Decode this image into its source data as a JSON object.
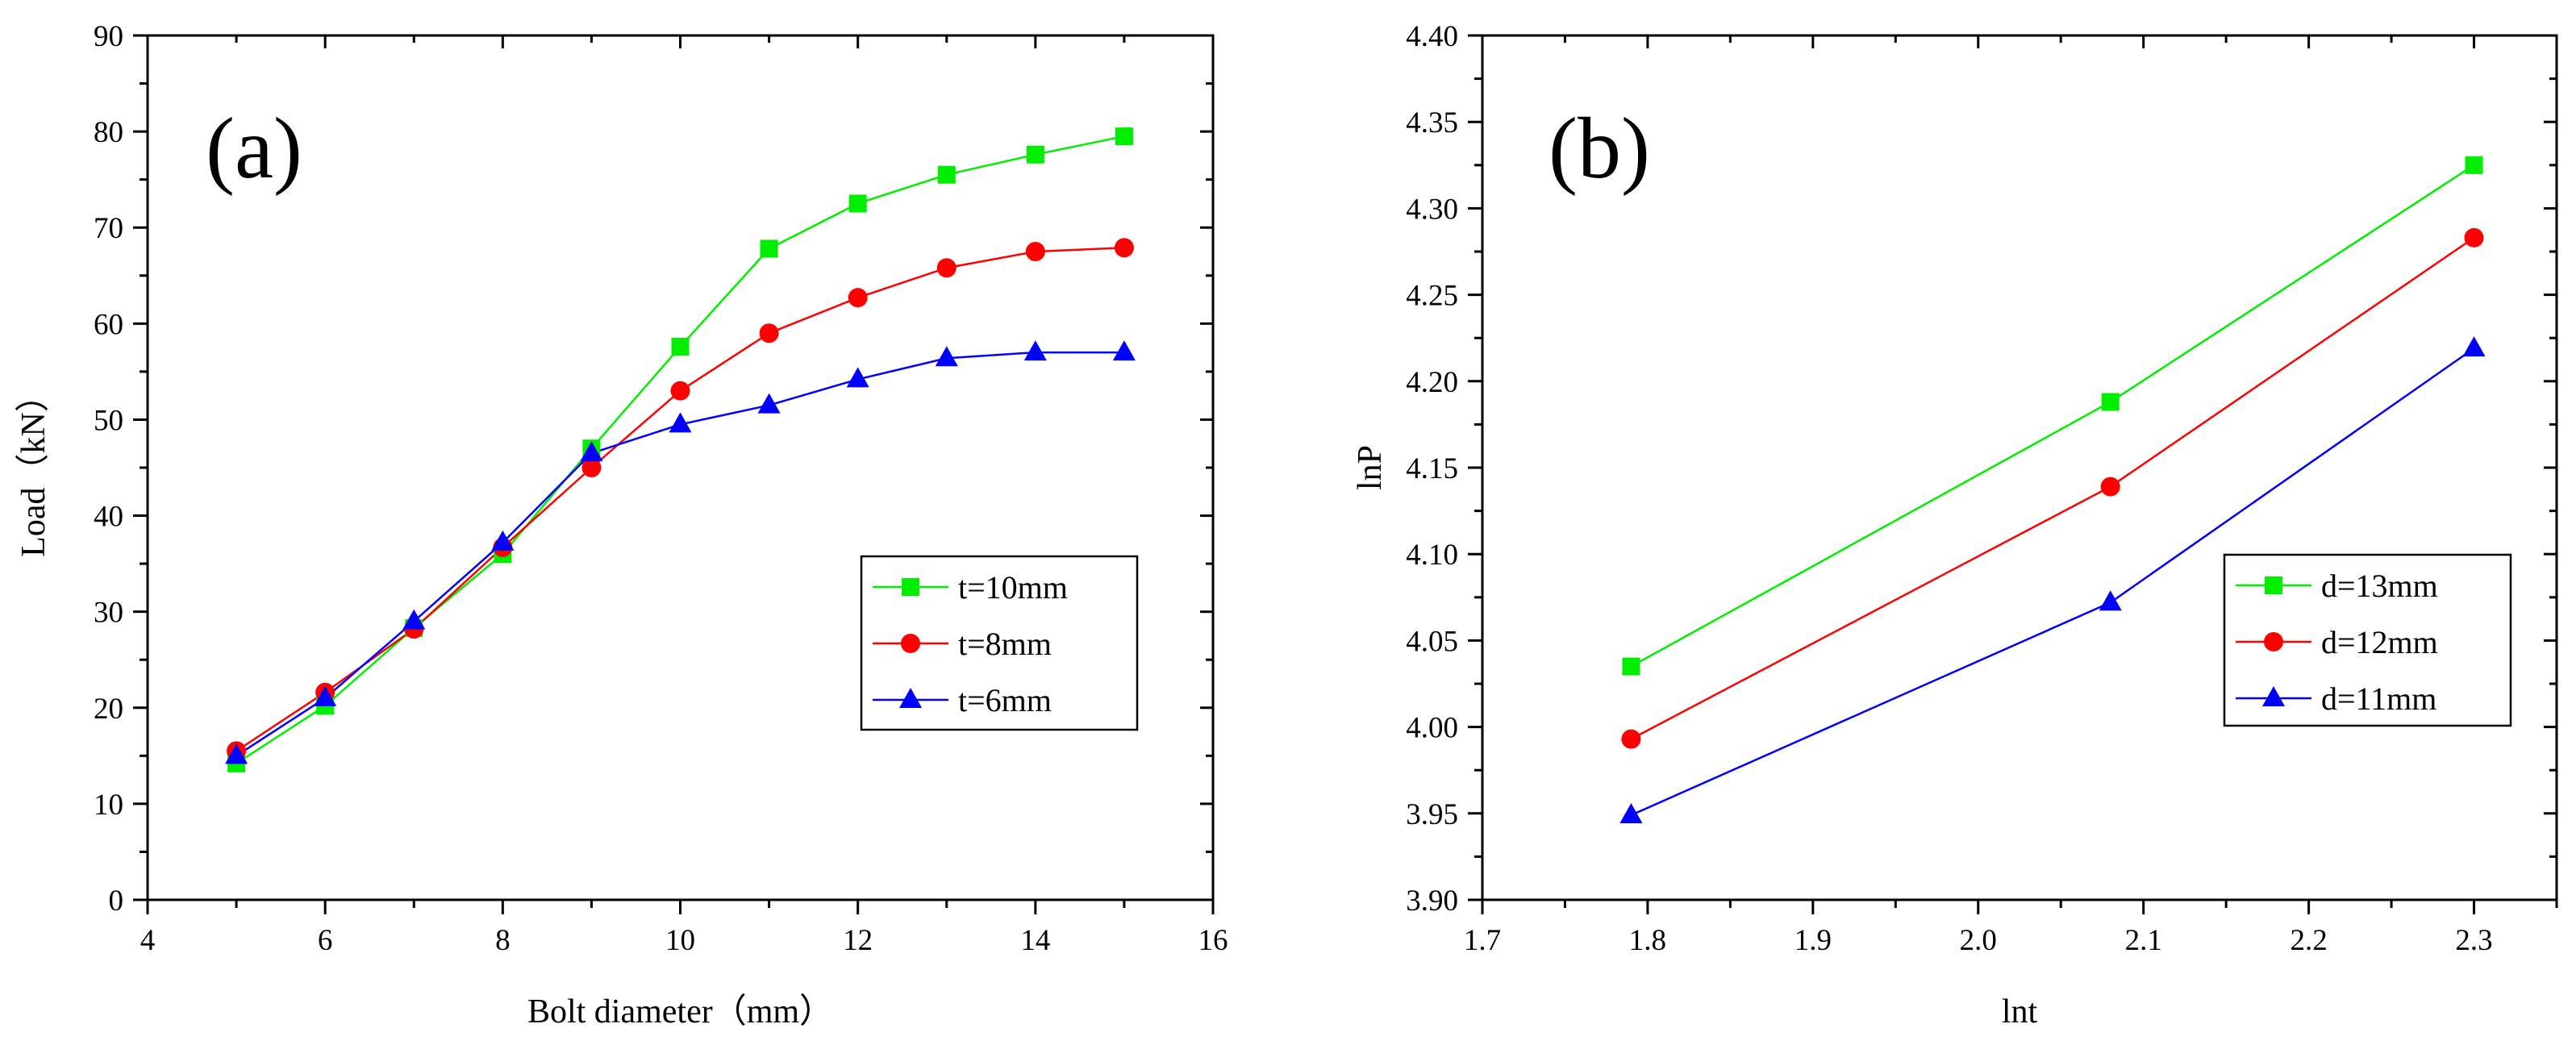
{
  "chart_data": [
    {
      "type": "line",
      "panel_label": "(a)",
      "xlabel": "Bolt diameter（mm）",
      "ylabel": "Load（kN）",
      "xlim": [
        4,
        16
      ],
      "ylim": [
        0,
        90
      ],
      "xticks": [
        4,
        6,
        8,
        10,
        12,
        14,
        16
      ],
      "yticks": [
        0,
        10,
        20,
        30,
        40,
        50,
        60,
        70,
        80,
        90
      ],
      "xtick_labels": [
        "4",
        "6",
        "8",
        "10",
        "12",
        "14",
        "16"
      ],
      "ytick_labels": [
        "0",
        "10",
        "20",
        "30",
        "40",
        "50",
        "60",
        "70",
        "80",
        "90"
      ],
      "legend_position": "center-right",
      "series": [
        {
          "name": "t=10mm",
          "color": "#00ee00",
          "marker": "square",
          "x": [
            5,
            6,
            7,
            8,
            9,
            10,
            11,
            12,
            13,
            14,
            15
          ],
          "y": [
            14.2,
            20.2,
            28.3,
            36,
            47,
            57.6,
            67.8,
            72.5,
            75.5,
            77.6,
            79.5
          ]
        },
        {
          "name": "t=8mm",
          "color": "#ff0000",
          "marker": "circle",
          "x": [
            5,
            6,
            7,
            8,
            9,
            10,
            11,
            12,
            13,
            14,
            15
          ],
          "y": [
            15.5,
            21.6,
            28.2,
            36.7,
            45,
            53,
            59,
            62.7,
            65.8,
            67.5,
            67.9
          ]
        },
        {
          "name": "t=6mm",
          "color": "#0000ff",
          "marker": "triangle",
          "x": [
            5,
            6,
            7,
            8,
            9,
            10,
            11,
            12,
            13,
            14,
            15
          ],
          "y": [
            15,
            21,
            29,
            37.2,
            46.5,
            49.5,
            51.5,
            54.2,
            56.4,
            57,
            57
          ]
        }
      ]
    },
    {
      "type": "line",
      "panel_label": "(b)",
      "xlabel": "lnt",
      "ylabel": "lnP",
      "xlim": [
        1.7,
        2.35
      ],
      "ylim": [
        3.9,
        4.4
      ],
      "xticks": [
        1.7,
        1.8,
        1.9,
        2.0,
        2.1,
        2.2,
        2.3
      ],
      "yticks": [
        3.9,
        3.95,
        4.0,
        4.05,
        4.1,
        4.15,
        4.2,
        4.25,
        4.3,
        4.35,
        4.4
      ],
      "xtick_labels": [
        "1.7",
        "1.8",
        "1.9",
        "2.0",
        "2.1",
        "2.2",
        "2.3"
      ],
      "ytick_labels": [
        "3.90",
        "3.95",
        "4.00",
        "4.05",
        "4.10",
        "4.15",
        "4.20",
        "4.25",
        "4.30",
        "4.35",
        "4.40"
      ],
      "legend_position": "center-right",
      "series": [
        {
          "name": "d=13mm",
          "color": "#00ee00",
          "marker": "square",
          "x": [
            1.79,
            2.08,
            2.3
          ],
          "y": [
            4.035,
            4.188,
            4.325
          ]
        },
        {
          "name": "d=12mm",
          "color": "#ff0000",
          "marker": "circle",
          "x": [
            1.79,
            2.08,
            2.3
          ],
          "y": [
            3.993,
            4.139,
            4.283
          ]
        },
        {
          "name": "d=11mm",
          "color": "#0000ff",
          "marker": "triangle",
          "x": [
            1.79,
            2.08,
            2.3
          ],
          "y": [
            3.949,
            4.072,
            4.219
          ]
        }
      ]
    }
  ]
}
